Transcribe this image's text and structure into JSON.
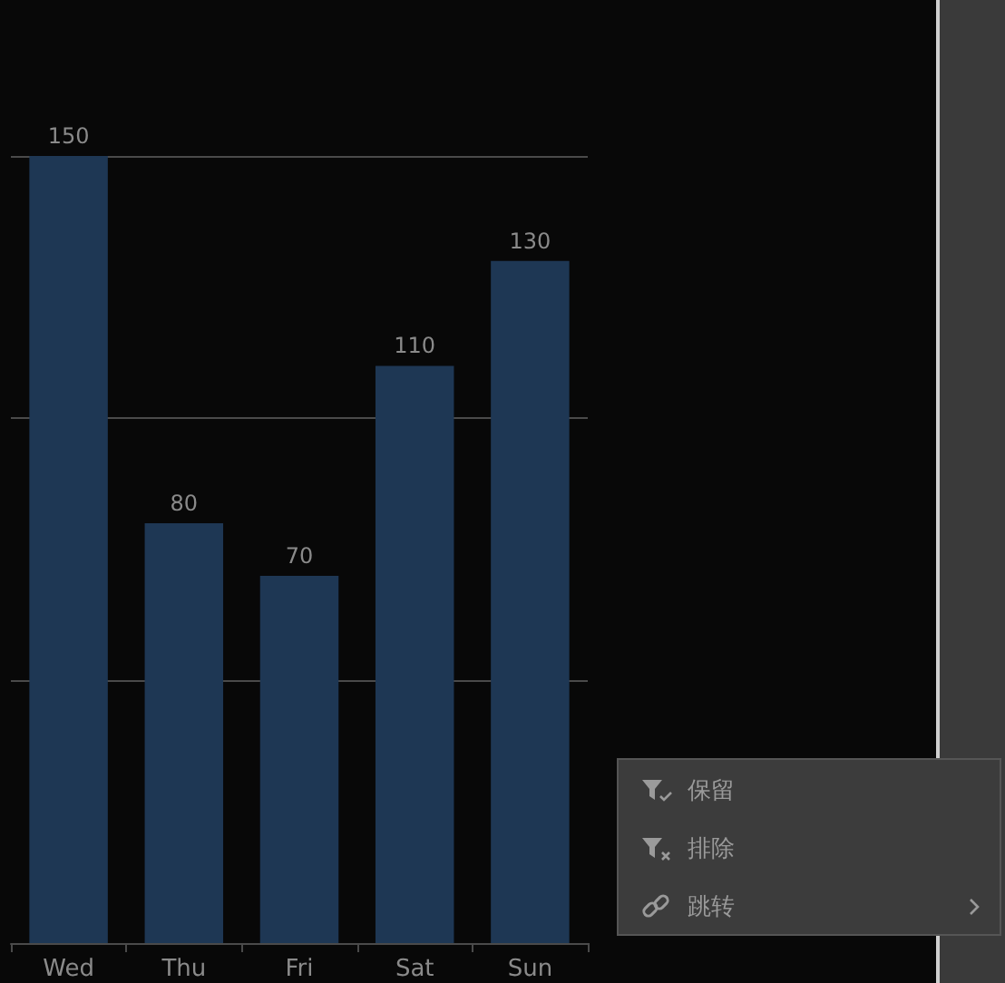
{
  "chart_data": {
    "type": "bar",
    "categories": [
      "Wed",
      "Thu",
      "Fri",
      "Sat",
      "Sun"
    ],
    "values": [
      150,
      80,
      70,
      110,
      130
    ],
    "color": "#1e3754",
    "ylim": [
      0,
      150
    ],
    "yticks": [
      {
        "value": 0,
        "label": null
      },
      {
        "value": 50,
        "label": null
      },
      {
        "value": 100,
        "label": null
      },
      {
        "value": 150,
        "label": null
      }
    ],
    "tick_labels": "x",
    "grid": "y",
    "data_labels": true,
    "annotations": [
      "保留",
      "排除",
      "跳转"
    ]
  }
}
